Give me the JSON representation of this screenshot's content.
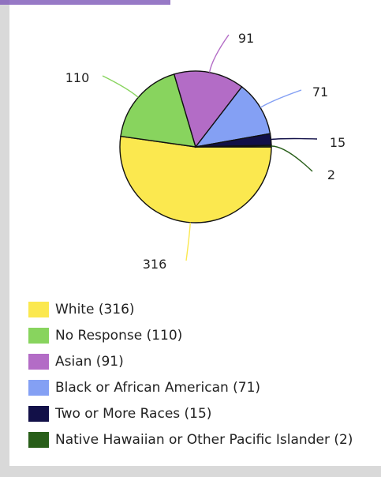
{
  "chart_data": {
    "type": "pie",
    "title": "",
    "slices": [
      {
        "label": "White",
        "value": 316,
        "color": "#fbe84f"
      },
      {
        "label": "No Response",
        "value": 110,
        "color": "#88d45e"
      },
      {
        "label": "Asian",
        "value": 91,
        "color": "#b36cc6"
      },
      {
        "label": "Black or African American",
        "value": 71,
        "color": "#84a0f4"
      },
      {
        "label": "Two or More Races",
        "value": 15,
        "color": "#121048"
      },
      {
        "label": "Native Hawaiian or Other Pacific Islander",
        "value": 2,
        "color": "#285e19"
      }
    ],
    "legend_placement": "bottom"
  },
  "legend": {
    "items": [
      {
        "text": "White (316)",
        "color": "#fbe84f"
      },
      {
        "text": "No Response (110)",
        "color": "#88d45e"
      },
      {
        "text": "Asian (91)",
        "color": "#b36cc6"
      },
      {
        "text": "Black or African American (71)",
        "color": "#84a0f4"
      },
      {
        "text": "Two or More Races (15)",
        "color": "#121048"
      },
      {
        "text": "Native Hawaiian or Other Pacific Islander (2)",
        "color": "#285e19"
      }
    ]
  }
}
